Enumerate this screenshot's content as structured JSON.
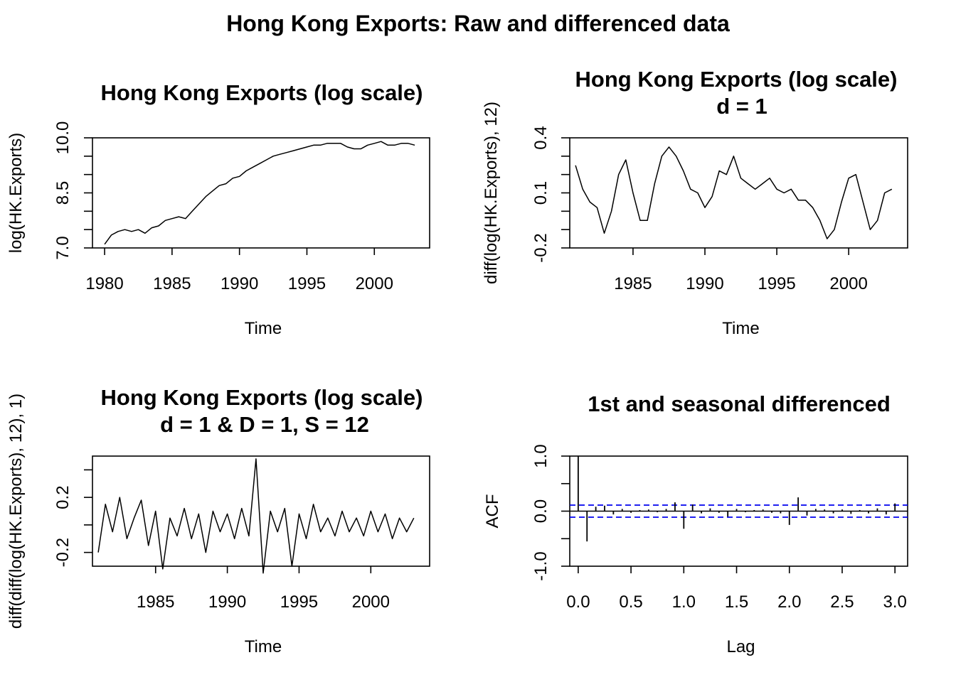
{
  "figure_title": "Hong Kong Exports: Raw and differenced data",
  "chart_data": [
    {
      "type": "line",
      "title": "Hong Kong Exports (log scale)",
      "subtitle": "",
      "xlabel": "Time",
      "ylabel": "log(HK.Exports)",
      "xlim": [
        1979.1,
        2004.1
      ],
      "ylim": [
        7.0,
        10.0
      ],
      "xticks": [
        1980,
        1985,
        1990,
        1995,
        2000
      ],
      "xtick_labels": [
        "1980",
        "1985",
        "1990",
        "1995",
        "2000"
      ],
      "yticks": [
        7.0,
        7.5,
        8.0,
        8.5,
        9.0,
        9.5,
        10.0
      ],
      "ytick_labels": [
        "7.0",
        "",
        "",
        "8.5",
        "",
        "",
        "10.0"
      ],
      "series": [
        {
          "x": [
            1980.0,
            1980.5,
            1981.0,
            1981.5,
            1982.0,
            1982.5,
            1983.0,
            1983.5,
            1984.0,
            1984.5,
            1985.0,
            1985.5,
            1986.0,
            1986.5,
            1987.0,
            1987.5,
            1988.0,
            1988.5,
            1989.0,
            1989.5,
            1990.0,
            1990.5,
            1991.0,
            1991.5,
            1992.0,
            1992.5,
            1993.0,
            1993.5,
            1994.0,
            1994.5,
            1995.0,
            1995.5,
            1996.0,
            1996.5,
            1997.0,
            1997.5,
            1998.0,
            1998.5,
            1999.0,
            1999.5,
            2000.0,
            2000.5,
            2001.0,
            2001.5,
            2002.0,
            2002.5,
            2003.0
          ],
          "y": [
            7.1,
            7.35,
            7.45,
            7.5,
            7.45,
            7.5,
            7.4,
            7.55,
            7.6,
            7.75,
            7.8,
            7.85,
            7.8,
            8.0,
            8.2,
            8.4,
            8.55,
            8.7,
            8.75,
            8.9,
            8.95,
            9.1,
            9.2,
            9.3,
            9.4,
            9.5,
            9.55,
            9.6,
            9.65,
            9.7,
            9.75,
            9.8,
            9.8,
            9.85,
            9.85,
            9.85,
            9.75,
            9.7,
            9.7,
            9.8,
            9.85,
            9.9,
            9.8,
            9.8,
            9.85,
            9.85,
            9.8
          ]
        }
      ]
    },
    {
      "type": "line",
      "title": "Hong Kong Exports (log scale)",
      "subtitle": "d = 1",
      "xlabel": "Time",
      "ylabel": "diff(log(HK.Exports), 12)",
      "xlim": [
        1980.6,
        2004.1
      ],
      "ylim": [
        -0.2,
        0.4
      ],
      "xticks": [
        1985,
        1990,
        1995,
        2000
      ],
      "xtick_labels": [
        "1985",
        "1990",
        "1995",
        "2000"
      ],
      "yticks": [
        -0.2,
        -0.1,
        0.0,
        0.1,
        0.2,
        0.3,
        0.4
      ],
      "ytick_labels": [
        "-0.2",
        "",
        "",
        "0.1",
        "",
        "",
        "0.4"
      ],
      "series": [
        {
          "x": [
            1981.0,
            1981.5,
            1982.0,
            1982.5,
            1983.0,
            1983.5,
            1984.0,
            1984.5,
            1985.0,
            1985.5,
            1986.0,
            1986.5,
            1987.0,
            1987.5,
            1988.0,
            1988.5,
            1989.0,
            1989.5,
            1990.0,
            1990.5,
            1991.0,
            1991.5,
            1992.0,
            1992.5,
            1993.0,
            1993.5,
            1994.0,
            1994.5,
            1995.0,
            1995.5,
            1996.0,
            1996.5,
            1997.0,
            1997.5,
            1998.0,
            1998.5,
            1999.0,
            1999.5,
            2000.0,
            2000.5,
            2001.0,
            2001.5,
            2002.0,
            2002.5,
            2003.0
          ],
          "y": [
            0.25,
            0.12,
            0.05,
            0.02,
            -0.12,
            0.0,
            0.2,
            0.28,
            0.1,
            -0.05,
            -0.05,
            0.15,
            0.3,
            0.35,
            0.3,
            0.22,
            0.12,
            0.1,
            0.02,
            0.08,
            0.22,
            0.2,
            0.3,
            0.18,
            0.15,
            0.12,
            0.15,
            0.18,
            0.12,
            0.1,
            0.12,
            0.06,
            0.06,
            0.02,
            -0.05,
            -0.15,
            -0.1,
            0.05,
            0.18,
            0.2,
            0.05,
            -0.1,
            -0.05,
            0.1,
            0.12
          ]
        }
      ]
    },
    {
      "type": "line",
      "title": "Hong Kong Exports (log scale)",
      "subtitle": "d = 1 & D = 1, S = 12",
      "xlabel": "Time",
      "ylabel": "diff(diff(log(HK.Exports), 12), 1)",
      "xlim": [
        1980.6,
        2004.1
      ],
      "ylim": [
        -0.3,
        0.5
      ],
      "xticks": [
        1985,
        1990,
        1995,
        2000
      ],
      "xtick_labels": [
        "1985",
        "1990",
        "1995",
        "2000"
      ],
      "yticks": [
        -0.2,
        0.0,
        0.2,
        0.4
      ],
      "ytick_labels": [
        "-0.2",
        "",
        "0.2",
        ""
      ],
      "series": [
        {
          "x": [
            1981.0,
            1981.5,
            1982.0,
            1982.5,
            1983.0,
            1983.5,
            1984.0,
            1984.5,
            1985.0,
            1985.5,
            1986.0,
            1986.5,
            1987.0,
            1987.5,
            1988.0,
            1988.5,
            1989.0,
            1989.5,
            1990.0,
            1990.5,
            1991.0,
            1991.5,
            1992.0,
            1992.5,
            1993.0,
            1993.5,
            1994.0,
            1994.5,
            1995.0,
            1995.5,
            1996.0,
            1996.5,
            1997.0,
            1997.5,
            1998.0,
            1998.5,
            1999.0,
            1999.5,
            2000.0,
            2000.5,
            2001.0,
            2001.5,
            2002.0,
            2002.5,
            2003.0
          ],
          "y": [
            -0.2,
            0.15,
            -0.05,
            0.2,
            -0.1,
            0.05,
            0.18,
            -0.15,
            0.1,
            -0.32,
            0.05,
            -0.08,
            0.12,
            -0.1,
            0.08,
            -0.2,
            0.1,
            -0.05,
            0.08,
            -0.1,
            0.12,
            -0.08,
            0.48,
            -0.35,
            0.1,
            -0.05,
            0.12,
            -0.3,
            0.08,
            -0.1,
            0.15,
            -0.05,
            0.05,
            -0.08,
            0.1,
            -0.05,
            0.05,
            -0.08,
            0.1,
            -0.05,
            0.08,
            -0.1,
            0.05,
            -0.05,
            0.05
          ]
        }
      ]
    },
    {
      "type": "bar",
      "title": "1st and seasonal differenced",
      "subtitle": "",
      "xlabel": "Lag",
      "ylabel": "ACF",
      "xlim": [
        -0.08,
        3.12
      ],
      "ylim": [
        -1.0,
        1.0
      ],
      "xticks": [
        0.0,
        0.5,
        1.0,
        1.5,
        2.0,
        2.5,
        3.0
      ],
      "xtick_labels": [
        "0.0",
        "0.5",
        "1.0",
        "1.5",
        "2.0",
        "2.5",
        "3.0"
      ],
      "yticks": [
        -1.0,
        -0.5,
        0.0,
        0.5,
        1.0
      ],
      "ytick_labels": [
        "-1.0",
        "",
        "0.0",
        "",
        "1.0"
      ],
      "confidence_band": 0.11,
      "zero_line": true,
      "series": [
        {
          "lags": [
            0.0,
            0.0833,
            0.1667,
            0.25,
            0.3333,
            0.4167,
            0.5,
            0.5833,
            0.6667,
            0.75,
            0.8333,
            0.9167,
            1.0,
            1.0833,
            1.1667,
            1.25,
            1.3333,
            1.4167,
            1.5,
            1.5833,
            1.6667,
            1.75,
            1.8333,
            1.9167,
            2.0,
            2.0833,
            2.1667,
            2.25,
            2.3333,
            2.4167,
            2.5,
            2.5833,
            2.6667,
            2.75,
            2.8333,
            2.9167,
            3.0
          ],
          "acf": [
            1.0,
            -0.55,
            0.08,
            0.1,
            -0.06,
            0.04,
            -0.03,
            0.02,
            0.03,
            -0.02,
            0.04,
            0.16,
            -0.32,
            0.12,
            -0.04,
            0.05,
            -0.03,
            -0.1,
            0.04,
            -0.02,
            0.02,
            0.03,
            -0.03,
            -0.04,
            -0.25,
            0.25,
            -0.08,
            0.04,
            0.03,
            -0.04,
            0.03,
            -0.05,
            0.02,
            -0.04,
            0.05,
            -0.06,
            0.14
          ]
        }
      ]
    }
  ]
}
